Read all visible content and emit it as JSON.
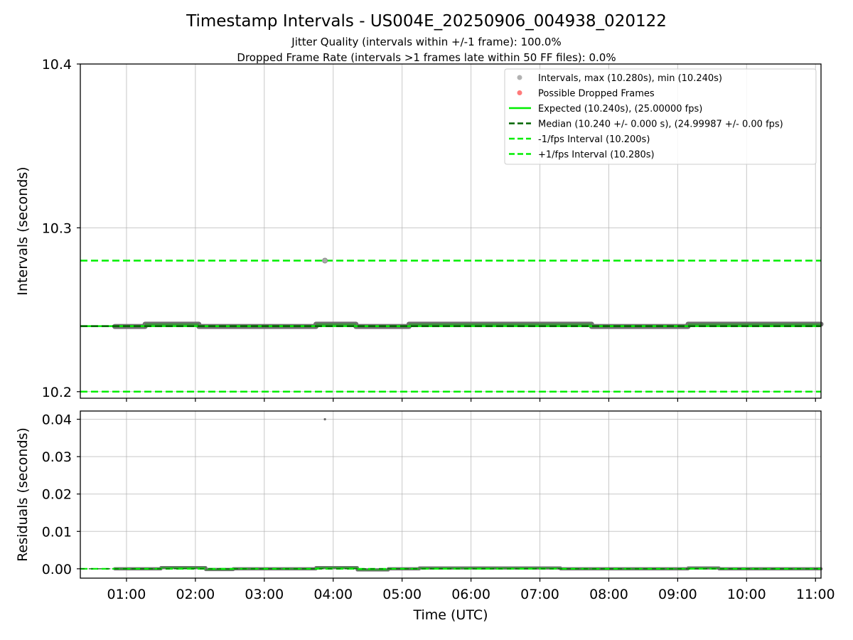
{
  "chart_data": {
    "type": "scatter",
    "title": "Timestamp Intervals - US004E_20250906_004938_020122",
    "subtitle_lines": [
      "Jitter Quality (intervals within +/-1 frame): 100.0%",
      "Dropped Frame Rate (intervals >1 frames late within 50 FF files): 0.0%"
    ],
    "xlabel": "Time (UTC)",
    "x_tick_labels": [
      "01:00",
      "02:00",
      "03:00",
      "04:00",
      "05:00",
      "06:00",
      "07:00",
      "08:00",
      "09:00",
      "10:00",
      "11:00"
    ],
    "x_tick_hours": [
      1,
      2,
      3,
      4,
      5,
      6,
      7,
      8,
      9,
      10,
      11
    ],
    "xlim_hours": [
      0.33,
      11.08
    ],
    "grid": true,
    "legend_position": "top-right",
    "colors": {
      "intervals": "#aaaaaa",
      "dropped": "#ff6b6b",
      "expected": "#00ee00",
      "median": "#006400",
      "fps_bounds": "#00ee00",
      "segments": "#707070"
    },
    "panels": [
      {
        "id": "intervals",
        "ylabel": "Intervals (seconds)",
        "ylim": [
          10.196,
          10.4
        ],
        "y_ticks": [
          10.2,
          10.3,
          10.4
        ],
        "y_tick_labels": [
          "10.2",
          "10.3",
          "10.4"
        ],
        "expected": 10.24,
        "median": 10.24,
        "minus_fps": 10.2,
        "plus_fps": 10.28,
        "outlier_points": [
          {
            "x": 3.88,
            "y": 10.28
          }
        ],
        "segments": [
          {
            "x0": 0.83,
            "x1": 1.27,
            "y": 10.2398
          },
          {
            "x0": 1.27,
            "x1": 2.05,
            "y": 10.2412
          },
          {
            "x0": 2.05,
            "x1": 3.75,
            "y": 10.2398
          },
          {
            "x0": 3.75,
            "x1": 4.33,
            "y": 10.2412
          },
          {
            "x0": 4.33,
            "x1": 5.1,
            "y": 10.2398
          },
          {
            "x0": 5.1,
            "x1": 7.75,
            "y": 10.2412
          },
          {
            "x0": 7.75,
            "x1": 9.15,
            "y": 10.2398
          },
          {
            "x0": 9.15,
            "x1": 11.08,
            "y": 10.2412
          }
        ],
        "legend": [
          {
            "kind": "point",
            "color": "#aaaaaa",
            "label": "Intervals, max (10.280s), min (10.240s)"
          },
          {
            "kind": "point",
            "color": "#ff6b6b",
            "label": "Possible Dropped Frames"
          },
          {
            "kind": "solid",
            "color": "#00ee00",
            "label": "Expected (10.240s), (25.00000 fps)"
          },
          {
            "kind": "dashed",
            "color": "#006400",
            "label": "Median (10.240 +/- 0.000 s), (24.99987 +/- 0.00 fps)"
          },
          {
            "kind": "dashed",
            "color": "#00ee00",
            "label": "-1/fps Interval (10.200s)"
          },
          {
            "kind": "dashed",
            "color": "#00ee00",
            "label": "+1/fps Interval (10.280s)"
          }
        ]
      },
      {
        "id": "residuals",
        "ylabel": "Residuals (seconds)",
        "ylim": [
          -0.0025,
          0.0422
        ],
        "y_ticks": [
          0.0,
          0.01,
          0.02,
          0.03,
          0.04
        ],
        "y_tick_labels": [
          "0.00",
          "0.01",
          "0.02",
          "0.03",
          "0.04"
        ],
        "outlier_points": [
          {
            "x": 3.88,
            "y": 0.04
          }
        ],
        "segments": [
          {
            "x0": 0.83,
            "x1": 1.5,
            "y": 0.0
          },
          {
            "x0": 1.5,
            "x1": 2.15,
            "y": 0.0003
          },
          {
            "x0": 2.15,
            "x1": 2.55,
            "y": -0.0002
          },
          {
            "x0": 2.55,
            "x1": 3.75,
            "y": 0.0
          },
          {
            "x0": 3.75,
            "x1": 4.35,
            "y": 0.0003
          },
          {
            "x0": 4.35,
            "x1": 4.8,
            "y": -0.0003
          },
          {
            "x0": 4.8,
            "x1": 5.25,
            "y": 0.0
          },
          {
            "x0": 5.25,
            "x1": 7.3,
            "y": 0.0002
          },
          {
            "x0": 7.3,
            "x1": 9.15,
            "y": 0.0
          },
          {
            "x0": 9.15,
            "x1": 9.6,
            "y": 0.0002
          },
          {
            "x0": 9.6,
            "x1": 11.08,
            "y": 0.0
          }
        ]
      }
    ]
  }
}
